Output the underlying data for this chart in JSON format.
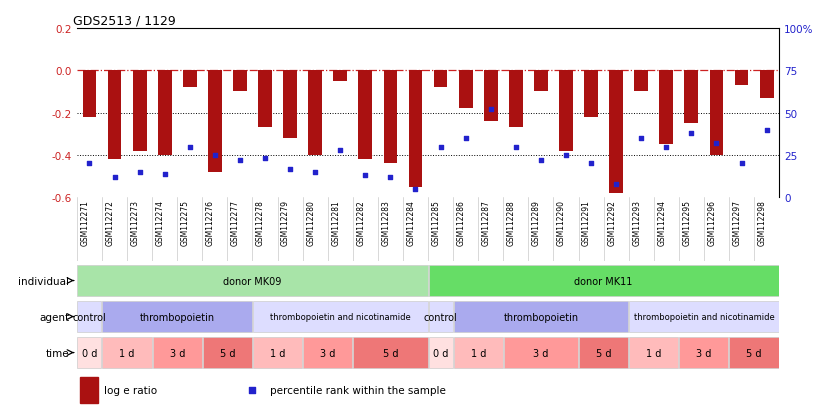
{
  "title": "GDS2513 / 1129",
  "samples": [
    "GSM112271",
    "GSM112272",
    "GSM112273",
    "GSM112274",
    "GSM112275",
    "GSM112276",
    "GSM112277",
    "GSM112278",
    "GSM112279",
    "GSM112280",
    "GSM112281",
    "GSM112282",
    "GSM112283",
    "GSM112284",
    "GSM112285",
    "GSM112286",
    "GSM112287",
    "GSM112288",
    "GSM112289",
    "GSM112290",
    "GSM112291",
    "GSM112292",
    "GSM112293",
    "GSM112294",
    "GSM112295",
    "GSM112296",
    "GSM112297",
    "GSM112298"
  ],
  "log_e_ratio": [
    -0.22,
    -0.42,
    -0.38,
    -0.4,
    -0.08,
    -0.48,
    -0.1,
    -0.27,
    -0.32,
    -0.4,
    -0.05,
    -0.42,
    -0.44,
    -0.55,
    -0.08,
    -0.18,
    -0.24,
    -0.27,
    -0.1,
    -0.38,
    -0.22,
    -0.58,
    -0.1,
    -0.35,
    -0.25,
    -0.4,
    -0.07,
    -0.13
  ],
  "percentile": [
    20,
    12,
    15,
    14,
    30,
    25,
    22,
    23,
    17,
    15,
    28,
    13,
    12,
    5,
    30,
    35,
    52,
    30,
    22,
    25,
    20,
    8,
    35,
    30,
    38,
    32,
    20,
    40
  ],
  "bar_color": "#aa1111",
  "dot_color": "#2222cc",
  "ylim_left": [
    -0.6,
    0.2
  ],
  "ylim_right": [
    0,
    100
  ],
  "yticks_left": [
    0.2,
    0.0,
    -0.2,
    -0.4,
    -0.6
  ],
  "yticks_right": [
    0,
    25,
    50,
    75,
    100
  ],
  "ylabel_left_color": "#cc2222",
  "ylabel_right_color": "#2222cc",
  "hline_y": 0.0,
  "hline_color": "#cc2222",
  "dotted_lines": [
    -0.2,
    -0.4
  ],
  "legend_bar_label": "log e ratio",
  "legend_dot_label": "percentile rank within the sample",
  "individual_row": {
    "label": "individual",
    "groups": [
      {
        "text": "donor MK09",
        "start": 0,
        "end": 13,
        "color": "#a8e4a8"
      },
      {
        "text": "donor MK11",
        "start": 14,
        "end": 27,
        "color": "#66dd66"
      }
    ]
  },
  "agent_row": {
    "label": "agent",
    "groups": [
      {
        "text": "control",
        "start": 0,
        "end": 0,
        "color": "#ddddff"
      },
      {
        "text": "thrombopoietin",
        "start": 1,
        "end": 6,
        "color": "#aaaaee"
      },
      {
        "text": "thrombopoietin and nicotinamide",
        "start": 7,
        "end": 13,
        "color": "#ddddff"
      },
      {
        "text": "control",
        "start": 14,
        "end": 14,
        "color": "#ddddff"
      },
      {
        "text": "thrombopoietin",
        "start": 15,
        "end": 21,
        "color": "#aaaaee"
      },
      {
        "text": "thrombopoietin and nicotinamide",
        "start": 22,
        "end": 27,
        "color": "#ddddff"
      }
    ]
  },
  "time_row": {
    "label": "time",
    "groups": [
      {
        "text": "0 d",
        "start": 0,
        "end": 0,
        "color": "#ffe0e0"
      },
      {
        "text": "1 d",
        "start": 1,
        "end": 2,
        "color": "#ffbbbb"
      },
      {
        "text": "3 d",
        "start": 3,
        "end": 4,
        "color": "#ff9999"
      },
      {
        "text": "5 d",
        "start": 5,
        "end": 6,
        "color": "#ee7777"
      },
      {
        "text": "1 d",
        "start": 7,
        "end": 8,
        "color": "#ffbbbb"
      },
      {
        "text": "3 d",
        "start": 9,
        "end": 10,
        "color": "#ff9999"
      },
      {
        "text": "5 d",
        "start": 11,
        "end": 13,
        "color": "#ee7777"
      },
      {
        "text": "0 d",
        "start": 14,
        "end": 14,
        "color": "#ffe0e0"
      },
      {
        "text": "1 d",
        "start": 15,
        "end": 16,
        "color": "#ffbbbb"
      },
      {
        "text": "3 d",
        "start": 17,
        "end": 19,
        "color": "#ff9999"
      },
      {
        "text": "5 d",
        "start": 20,
        "end": 21,
        "color": "#ee7777"
      },
      {
        "text": "1 d",
        "start": 22,
        "end": 23,
        "color": "#ffbbbb"
      },
      {
        "text": "3 d",
        "start": 24,
        "end": 25,
        "color": "#ff9999"
      },
      {
        "text": "5 d",
        "start": 26,
        "end": 27,
        "color": "#ee7777"
      }
    ]
  }
}
